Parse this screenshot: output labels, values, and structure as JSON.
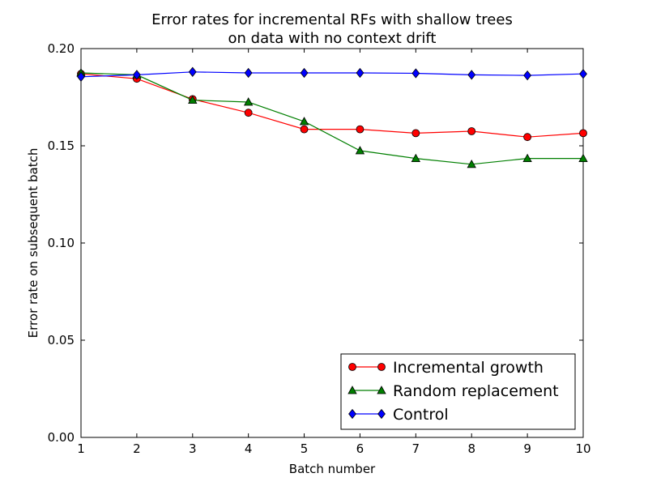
{
  "chart_data": {
    "type": "line",
    "title_lines": [
      "Error rates for incremental RFs with shallow trees",
      "on data with no context drift"
    ],
    "xlabel": "Batch number",
    "ylabel": "Error rate on subsequent batch",
    "xlim": [
      1,
      10
    ],
    "ylim": [
      0.0,
      0.2
    ],
    "x": [
      1,
      2,
      3,
      4,
      5,
      6,
      7,
      8,
      9,
      10
    ],
    "x_ticks": [
      "1",
      "2",
      "3",
      "4",
      "5",
      "6",
      "7",
      "8",
      "9",
      "10"
    ],
    "y_ticks": [
      {
        "value": 0.0,
        "label": "0.00"
      },
      {
        "value": 0.05,
        "label": "0.05"
      },
      {
        "value": 0.1,
        "label": "0.10"
      },
      {
        "value": 0.15,
        "label": "0.15"
      },
      {
        "value": 0.2,
        "label": "0.20"
      }
    ],
    "grid": false,
    "legend_position": "lower-right",
    "series": [
      {
        "name": "Incremental growth",
        "marker": "circle",
        "color": "#ff0000",
        "line_color": "#ff0000",
        "values": [
          0.187,
          0.1845,
          0.174,
          0.167,
          0.1585,
          0.1585,
          0.1565,
          0.1575,
          0.1545,
          0.1565
        ]
      },
      {
        "name": "Random replacement",
        "marker": "triangle",
        "color": "#007f00",
        "line_color": "#007f00",
        "values": [
          0.1875,
          0.1865,
          0.1735,
          0.1725,
          0.1625,
          0.1475,
          0.1435,
          0.1405,
          0.1435,
          0.1435
        ]
      },
      {
        "name": "Control",
        "marker": "diamond",
        "color": "#0000ff",
        "line_color": "#0000ff",
        "values": [
          0.1855,
          0.1865,
          0.188,
          0.1875,
          0.1875,
          0.1875,
          0.1873,
          0.1865,
          0.1862,
          0.187
        ]
      }
    ]
  }
}
